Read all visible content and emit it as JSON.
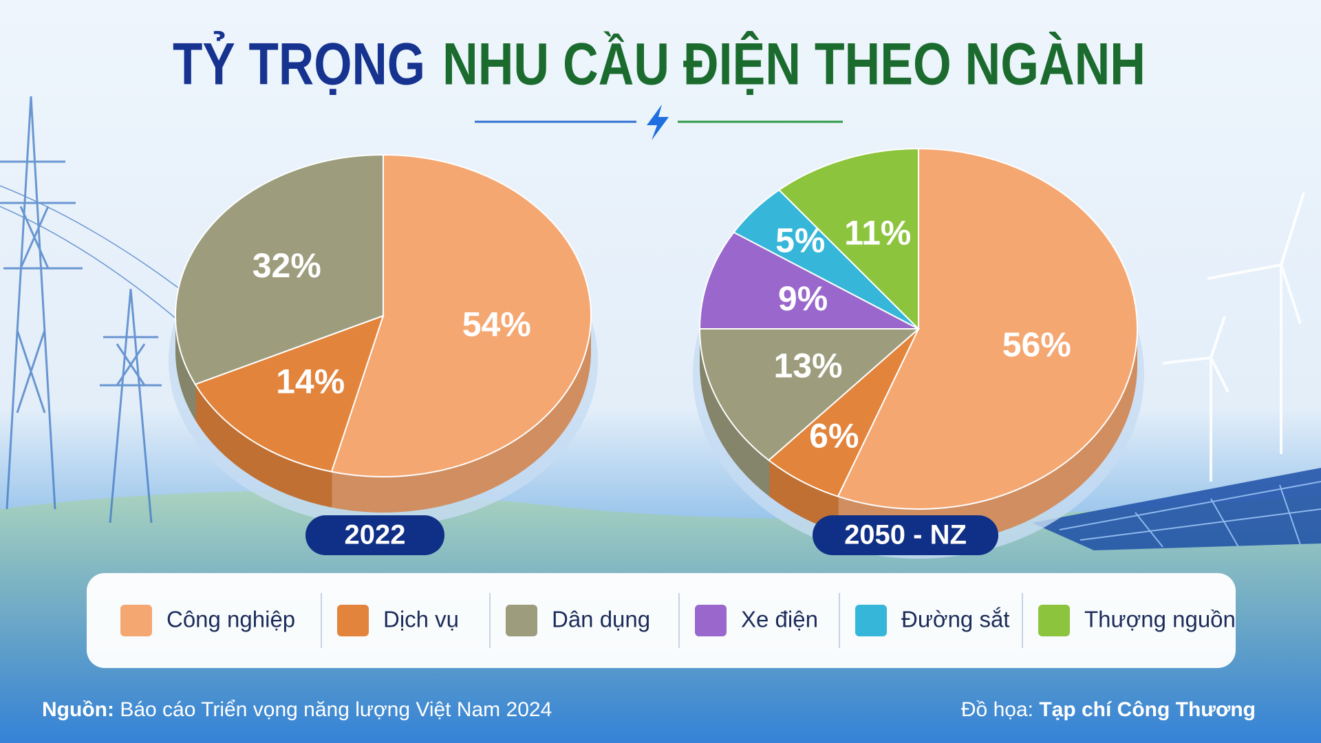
{
  "title": [
    "TỶ TRỌNG",
    "NHU CẦU ĐIỆN THEO NGÀNH"
  ],
  "legend": [
    {
      "name": "Công nghiệp",
      "color": "#f5a772"
    },
    {
      "name": "Dịch vụ",
      "color": "#e2843c"
    },
    {
      "name": "Dân dụng",
      "color": "#9d9d7e"
    },
    {
      "name": "Xe điện",
      "color": "#9a68cc"
    },
    {
      "name": "Đường sắt",
      "color": "#36b6d8"
    },
    {
      "name": "Thượng nguồn",
      "color": "#8cc43e"
    }
  ],
  "chart_data": [
    {
      "type": "pie",
      "title": "2022",
      "values": [
        54,
        14,
        32
      ],
      "value_labels": [
        "54%",
        "14%",
        "32%"
      ]
    },
    {
      "type": "pie",
      "title": "2050 - NZ",
      "values": [
        56,
        6,
        13,
        9,
        5,
        11
      ],
      "value_labels": [
        "56%",
        "6%",
        "13%",
        "9%",
        "5%",
        "11%"
      ]
    }
  ],
  "source": {
    "label": "Nguồn:",
    "text": "Báo cáo Triển vọng năng lượng Việt Nam 2024"
  },
  "credit": {
    "label": "Đồ họa:",
    "text": "Tạp chí Công Thương"
  }
}
